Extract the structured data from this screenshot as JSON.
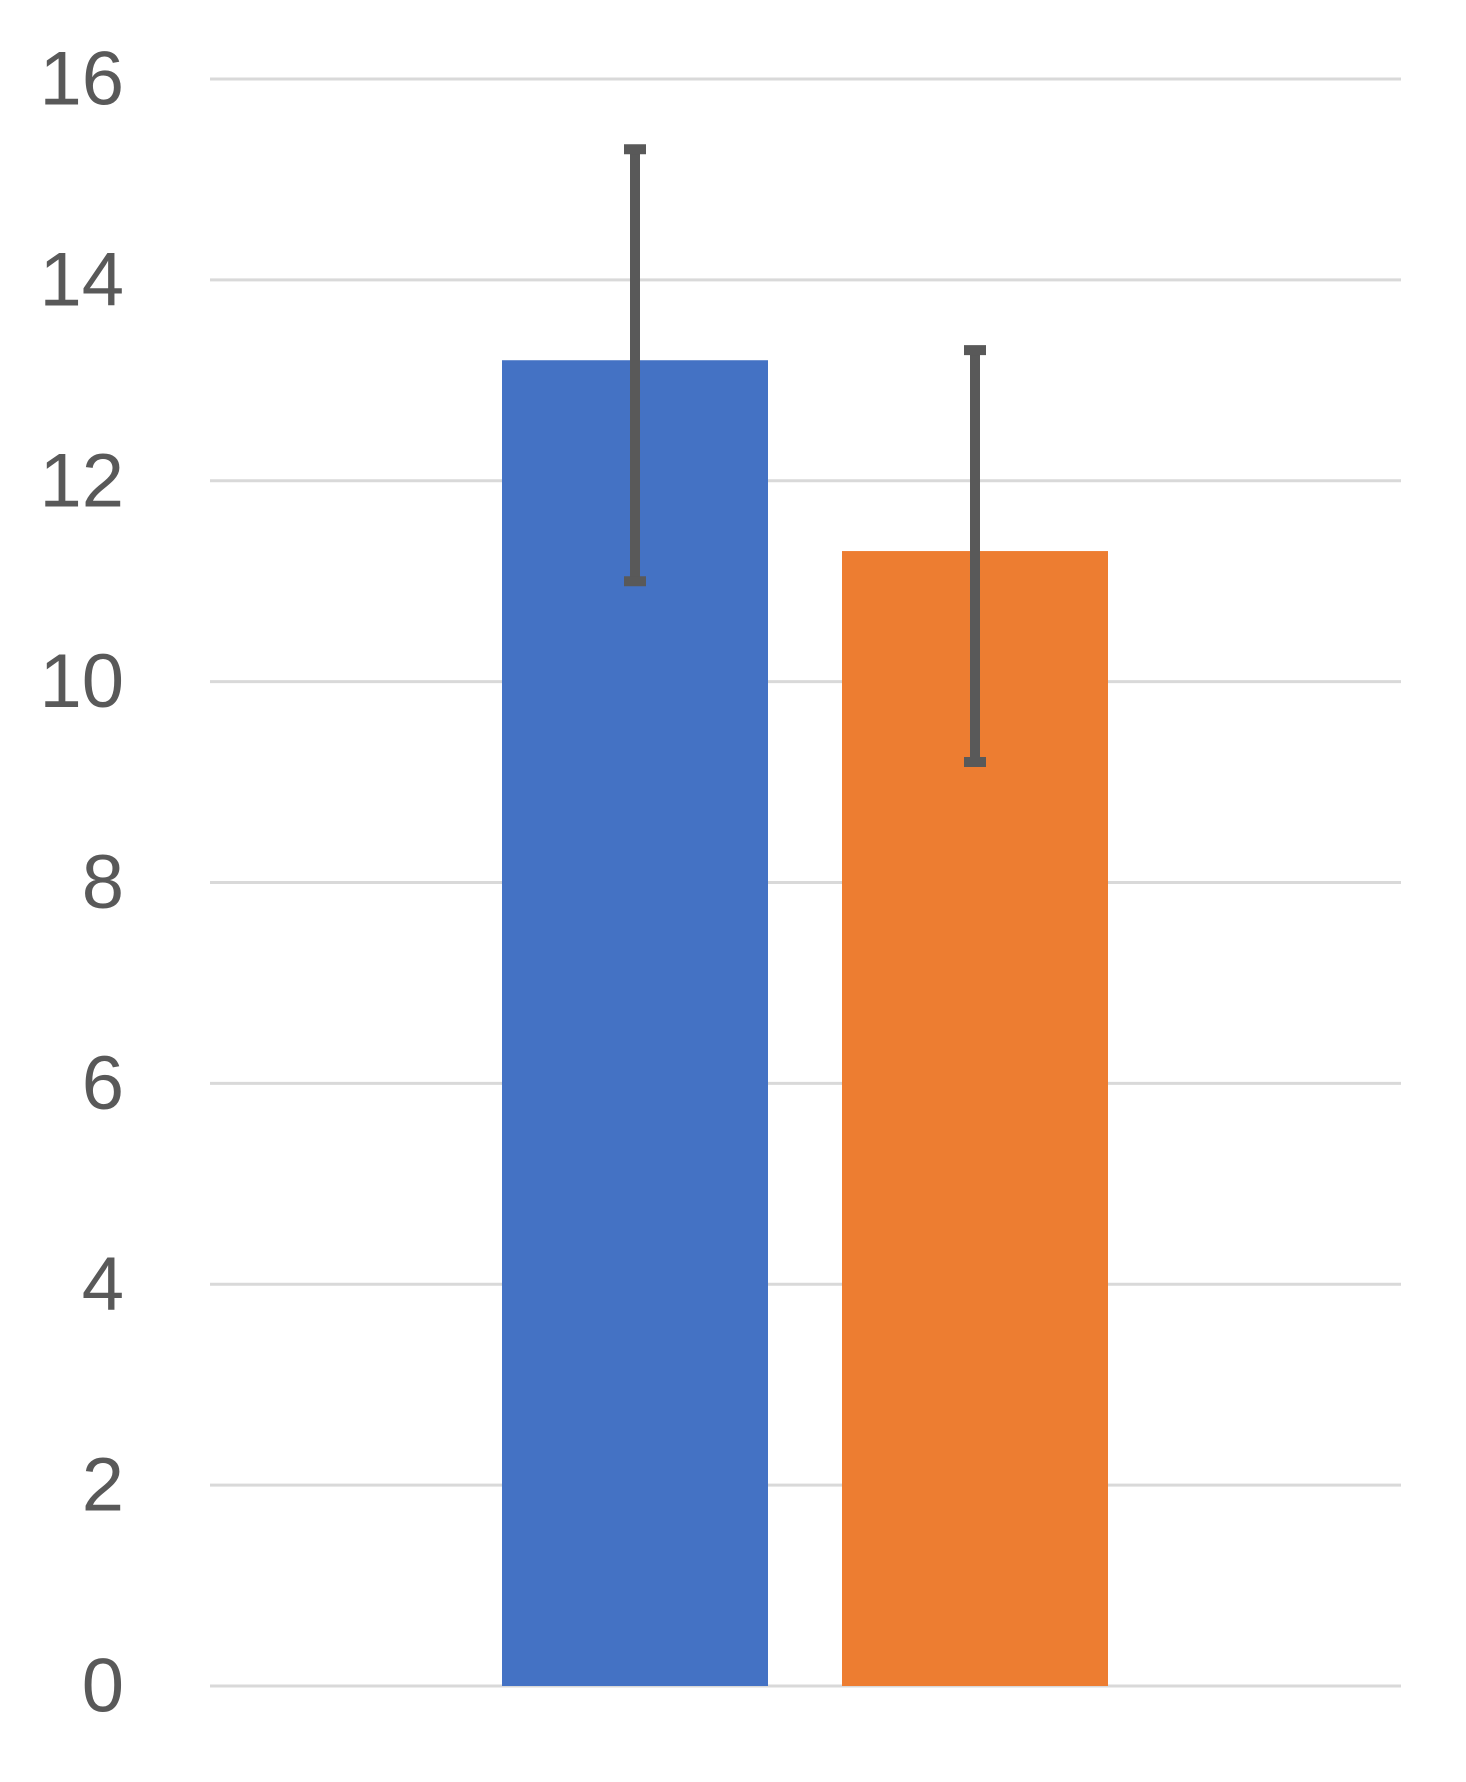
{
  "chart_data": {
    "type": "bar",
    "title": "",
    "xlabel": "",
    "ylabel": "",
    "ylim": [
      0,
      16
    ],
    "yticks": [
      "0",
      "2",
      "4",
      "6",
      "8",
      "10",
      "12",
      "14",
      "16"
    ],
    "grid": true,
    "legend": "none",
    "series": [
      {
        "value": 13.2,
        "error_low": 11.0,
        "error_high": 15.3,
        "color": "#4472c4"
      },
      {
        "value": 11.3,
        "error_low": 9.2,
        "error_high": 13.3,
        "color": "#ed7d31"
      }
    ],
    "gridline_color": "#d9d9d9",
    "error_bar_color": "#595959",
    "tick_label_color": "#595959"
  }
}
